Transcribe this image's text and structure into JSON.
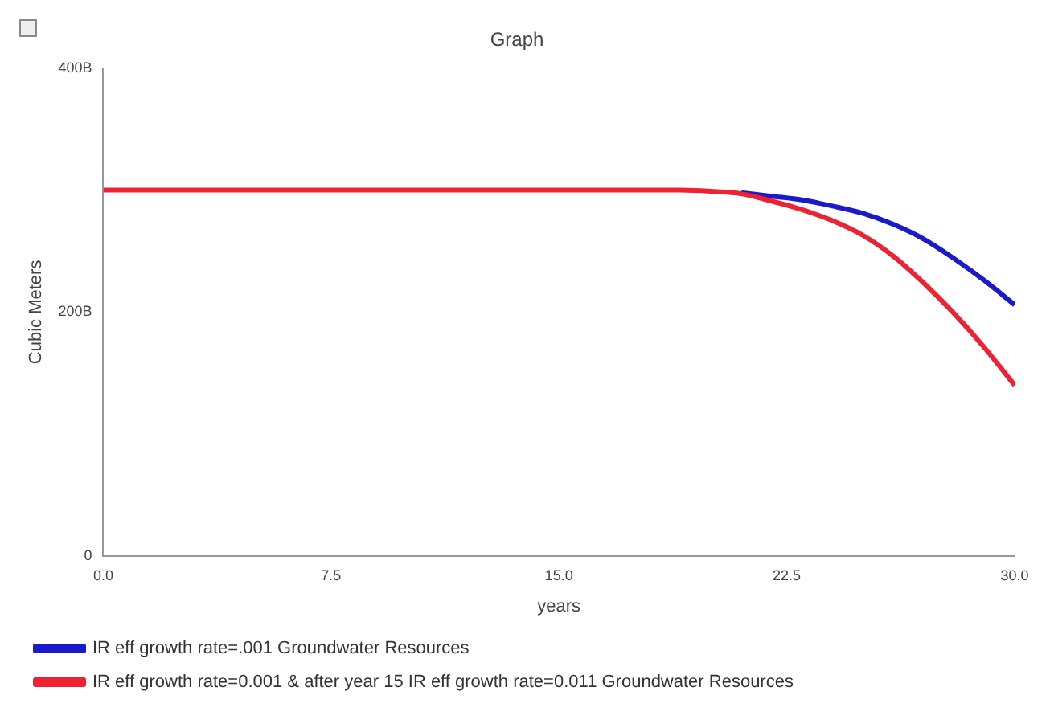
{
  "chart_data": {
    "type": "line",
    "title": "Graph",
    "xlabel": "years",
    "ylabel": "Cubic Meters",
    "xlim": [
      0,
      30
    ],
    "xticks": [
      {
        "value": 0,
        "label": "0.0"
      },
      {
        "value": 7.5,
        "label": "7.5"
      },
      {
        "value": 15,
        "label": "15.0"
      },
      {
        "value": 22.5,
        "label": "22.5"
      },
      {
        "value": 30,
        "label": "30.0"
      }
    ],
    "ylim": [
      0,
      400
    ],
    "yticks": [
      0,
      {
        "value": 200,
        "label": "200B"
      },
      {
        "value": 400,
        "label": "400B"
      }
    ],
    "x": [
      0,
      5,
      10,
      15,
      19,
      20,
      21,
      22,
      23,
      24,
      25,
      26,
      27,
      28,
      29,
      30
    ],
    "series": [
      {
        "name": "IR eff growth rate=.001 Groundwater Resources",
        "color": "#1a1acc",
        "values": [
          null,
          null,
          null,
          null,
          null,
          null,
          298,
          295,
          292,
          287,
          281,
          272,
          260,
          244,
          226,
          206
        ]
      },
      {
        "name": "IR eff growth rate=0.001 & after year 15 IR eff growth rate=0.011 Groundwater Resources",
        "color": "#ee2233",
        "values": [
          300,
          300,
          300,
          300,
          300,
          299,
          297,
          291,
          284,
          275,
          263,
          246,
          224,
          199,
          171,
          140
        ]
      }
    ],
    "grid": false,
    "legend": "bottom",
    "marker": "none",
    "line_style": "solid"
  }
}
